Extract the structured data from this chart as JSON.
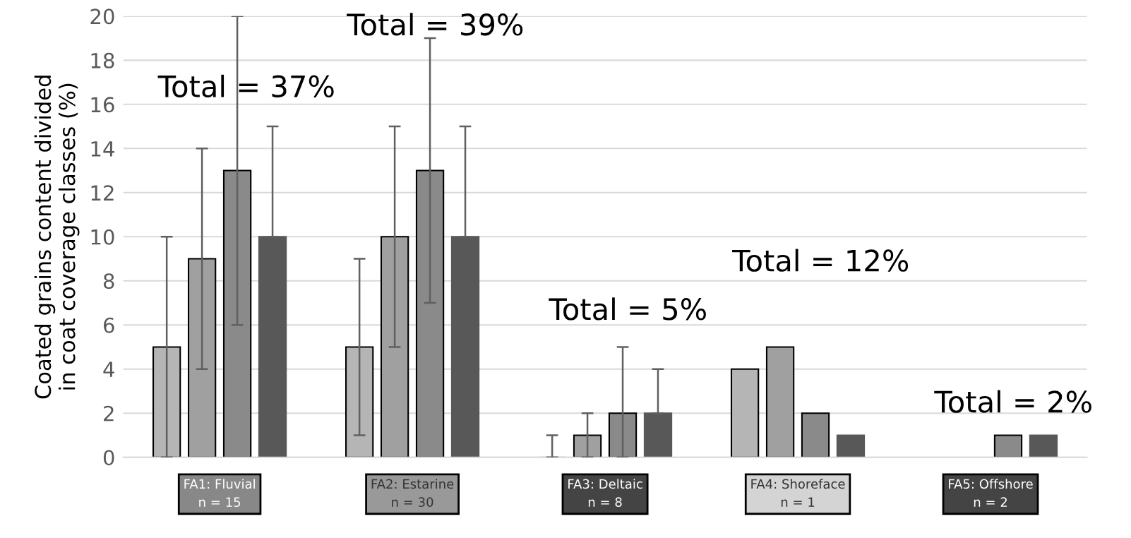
{
  "chart_data": {
    "type": "bar",
    "ylabel": "Coated grains content divided\nin coat coverage classes (%)",
    "categories": [
      "FA1: Fluvial\nn = 15",
      "FA2: Estarine\nn = 30",
      "FA3: Deltaic\nn = 8",
      "FA4: Shoreface\nn = 1",
      "FA5: Offshore\nn = 2"
    ],
    "series": [
      {
        "color": "#b5b5b5",
        "values": [
          5,
          5,
          0,
          4,
          null
        ],
        "errors": [
          [
            0,
            10
          ],
          [
            1,
            9
          ],
          [
            0,
            1
          ],
          null,
          null
        ]
      },
      {
        "color": "#a0a0a0",
        "values": [
          9,
          10,
          1,
          5,
          null
        ],
        "errors": [
          [
            4,
            14
          ],
          [
            5,
            15
          ],
          [
            0,
            2
          ],
          null,
          null
        ]
      },
      {
        "color": "#8a8a8a",
        "values": [
          13,
          13,
          2,
          2,
          1
        ],
        "errors": [
          [
            6,
            20
          ],
          [
            7,
            19
          ],
          [
            0,
            5
          ],
          null,
          null
        ]
      },
      {
        "color": "#585858",
        "values": [
          10,
          10,
          2,
          1,
          1
        ],
        "errors": [
          [
            10,
            15
          ],
          [
            10,
            15
          ],
          [
            2,
            4
          ],
          null,
          null
        ]
      }
    ],
    "ylim": [
      0,
      20
    ],
    "yticks": [
      0,
      2,
      4,
      6,
      8,
      10,
      12,
      14,
      16,
      18,
      20
    ],
    "grid": "y",
    "legend": false,
    "annotations": [
      "Total = 37%",
      "Total = 39%",
      "Total = 5%",
      "Total = 12%",
      "Total = 2%"
    ]
  }
}
